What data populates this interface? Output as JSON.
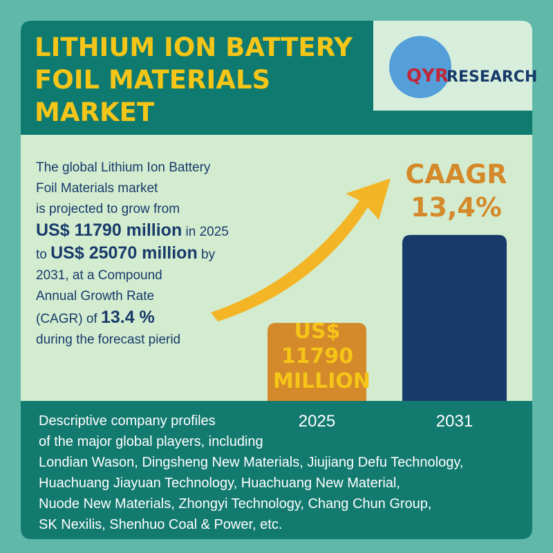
{
  "header": {
    "title": "LITHIUM ION BATTERY FOIL MATERIALS MARKET",
    "logo_prefix": "QYR",
    "logo_suffix": "RESEARCH"
  },
  "intro": [
    [
      {
        "text": "The global Lithium Ion Battery"
      }
    ],
    [
      {
        "text": "Foil Materials market"
      }
    ],
    [
      {
        "text": "is projected to grow from"
      }
    ],
    [
      {
        "text": "US$ 11790 million",
        "strong": true
      },
      {
        "text": " in 2025"
      }
    ],
    [
      {
        "text": "to "
      },
      {
        "text": "US$ 25070 million",
        "strong": true
      },
      {
        "text": " by"
      }
    ],
    [
      {
        "text": "2031, at a Compound"
      }
    ],
    [
      {
        "text": "Annual Growth Rate"
      }
    ],
    [
      {
        "text": "(CAGR) of "
      },
      {
        "text": "13.4 %",
        "strong": true
      }
    ],
    [
      {
        "text": "during the forecast pierid"
      }
    ]
  ],
  "cagr": {
    "label": "CAAGR",
    "value": "13,4%"
  },
  "chart_data": {
    "type": "bar",
    "categories": [
      "2025",
      "2031"
    ],
    "values": [
      11790,
      25070
    ],
    "value_labels": [
      "US$ 11790 MILLION",
      null
    ],
    "colors": [
      "#d4892a",
      "#173a6a"
    ],
    "ylim": [
      0,
      26000
    ]
  },
  "profiles": [
    "Descriptive company profiles",
    "of the major global players, including",
    "Londian Wason, Dingsheng New Materials, Jiujiang Defu Technology,",
    "Huachuang Jiayuan Technology, Huachuang New Material,",
    "Nuode New Materials, Zhongyi Technology, Chang Chun Group,",
    "SK Nexilis, Shenhuo Coal & Power, etc."
  ]
}
